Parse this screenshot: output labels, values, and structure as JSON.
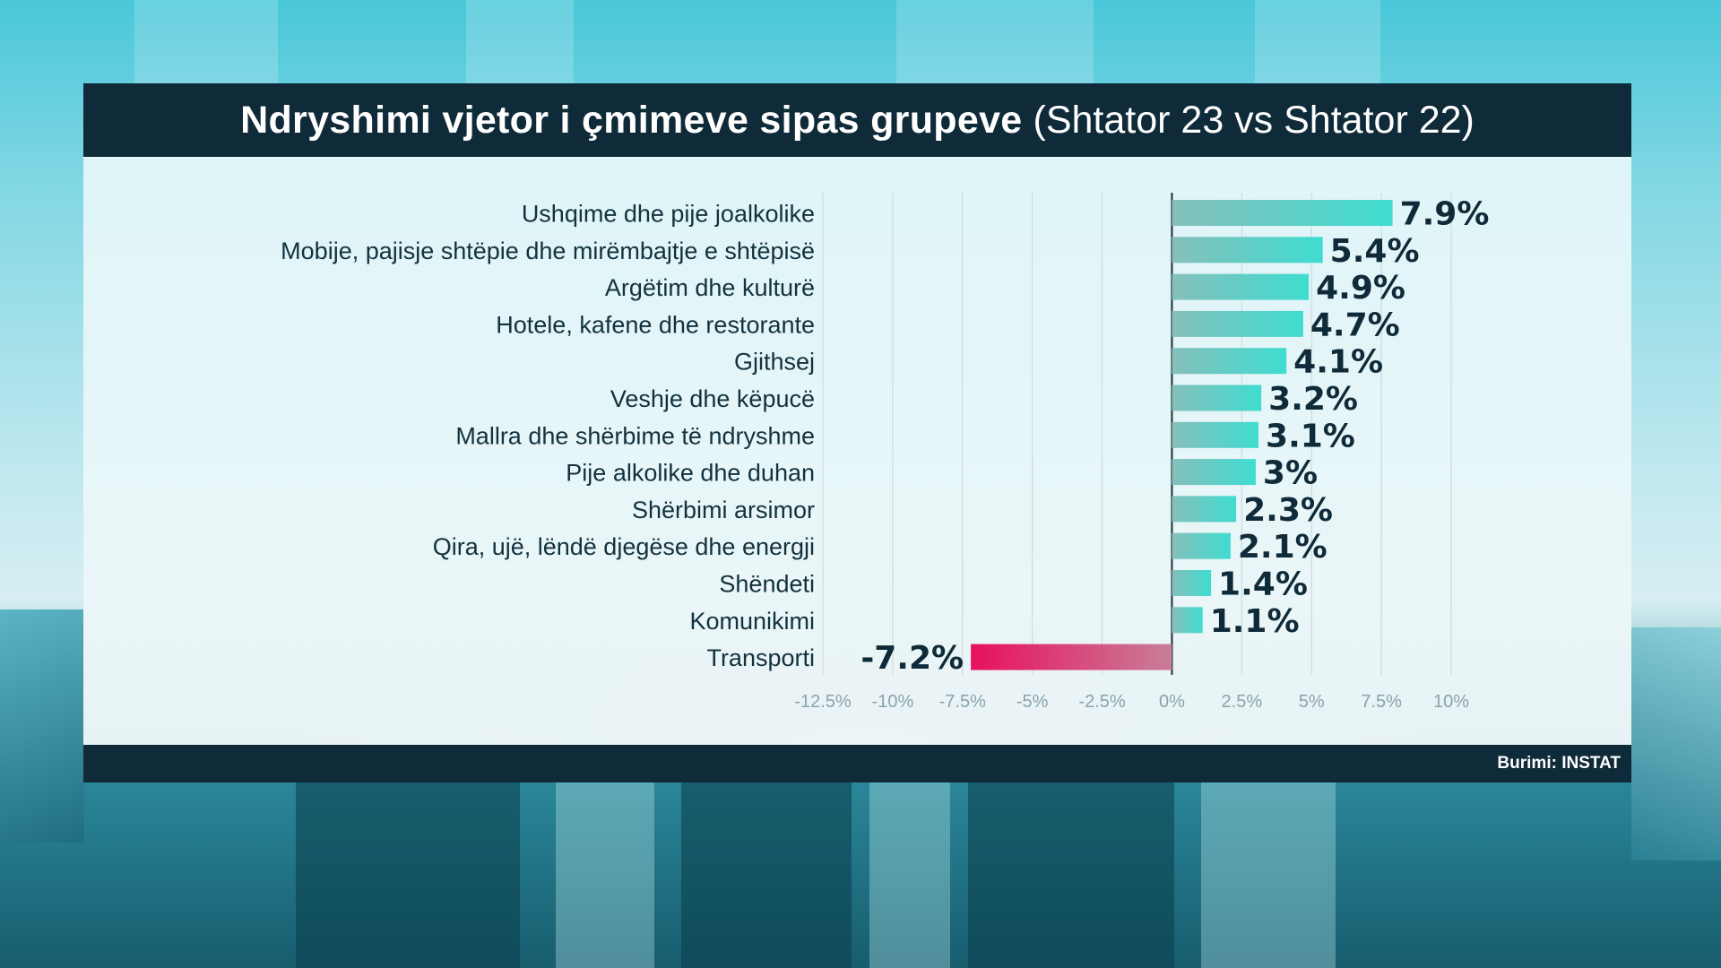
{
  "title_bold": "Ndryshimi vjetor i çmimeve sipas grupeve",
  "title_light": "(Shtator 23 vs Shtator 22)",
  "source": "Burimi: INSTAT",
  "colors": {
    "positive_start": "#86bfbb",
    "positive_end": "#3fdcd0",
    "negative_start": "#c87e98",
    "negative_end": "#e8105e",
    "header_bg": "#0f2a38"
  },
  "chart_data": {
    "type": "bar",
    "orientation": "horizontal",
    "title": "Ndryshimi vjetor i çmimeve sipas grupeve (Shtator 23 vs Shtator 22)",
    "categories": [
      "Ushqime dhe pije joalkolike",
      "Mobije, pajisje shtëpie dhe mirëmbajtje e shtëpisë",
      "Argëtim dhe kulturë",
      "Hotele, kafene dhe restorante",
      "Gjithsej",
      "Veshje dhe këpucë",
      "Mallra dhe shërbime të ndryshme",
      "Pije alkolike dhe duhan",
      "Shërbimi arsimor",
      "Qira, ujë, lëndë djegëse dhe energji",
      "Shëndeti",
      "Komunikimi",
      "Transporti"
    ],
    "values": [
      7.9,
      5.4,
      4.9,
      4.7,
      4.1,
      3.2,
      3.1,
      3.0,
      2.3,
      2.1,
      1.4,
      1.1,
      -7.2
    ],
    "value_labels": [
      "7.9%",
      "5.4%",
      "4.9%",
      "4.7%",
      "4.1%",
      "3.2%",
      "3.1%",
      "3%",
      "2.3%",
      "2.1%",
      "1.4%",
      "1.1%",
      "-7.2%"
    ],
    "xlim": [
      -12.5,
      10
    ],
    "xticks": [
      -12.5,
      -10,
      -7.5,
      -5,
      -2.5,
      0,
      2.5,
      5,
      7.5,
      10
    ],
    "xtick_labels": [
      "-12.5%",
      "-10%",
      "-7.5%",
      "-5%",
      "-2.5%",
      "0%",
      "2.5%",
      "5%",
      "7.5%",
      "10%"
    ],
    "grid": true
  }
}
